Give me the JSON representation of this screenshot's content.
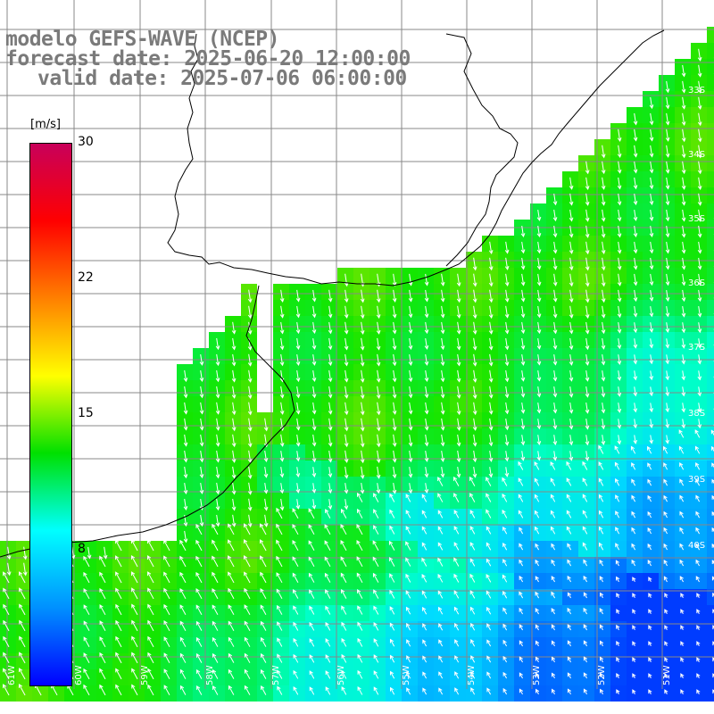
{
  "title": {
    "line1": "modelo GEFS-WAVE (NCEP)",
    "line2": "forecast date: 2025-06-20 12:00:00",
    "line3": "valid date: 2025-07-06 06:00:00"
  },
  "colorbar": {
    "unit": "[m/s]",
    "ticks": [
      "30",
      "22",
      "15",
      "8"
    ],
    "colors": [
      "#c8005a",
      "#ff0000",
      "#ff8000",
      "#ffff00",
      "#00e000",
      "#00ffff",
      "#0090ff",
      "#0000ff"
    ]
  },
  "lat_labels": [
    "33S",
    "34S",
    "35S",
    "36S",
    "37S",
    "38S",
    "39S",
    "40S"
  ],
  "lon_labels": [
    "61W",
    "60W",
    "59W",
    "58W",
    "57W",
    "56W",
    "55W",
    "54W",
    "53W",
    "52W",
    "51W"
  ],
  "map": {
    "land_color": "#ffffff",
    "grid_color": "#888888",
    "coast_color": "#000000",
    "arrow_color": "#ffffff"
  }
}
